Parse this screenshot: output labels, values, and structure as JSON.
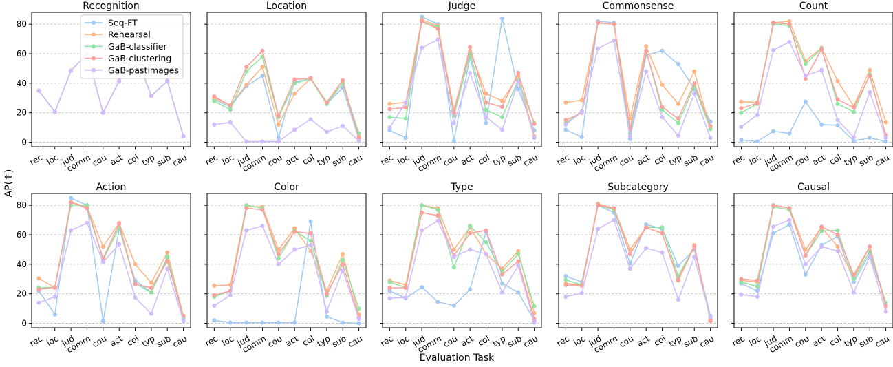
{
  "figure": {
    "ylabel": "AP(↑)",
    "xlabel": "Evaluation Task"
  },
  "legend": {
    "placement": "upper-right of first panel",
    "entries": [
      "Seq-FT",
      "Rehearsal",
      "GaB-classifier",
      "GaB-clustering",
      "GaB-pastimages"
    ]
  },
  "colors": {
    "Seq-FT": "#a1c9f4",
    "Rehearsal": "#ffb482",
    "GaB-classifier": "#8de5a1",
    "GaB-clustering": "#ff9f9b",
    "GaB-pastimages": "#d0bbff"
  },
  "chart_data": [
    {
      "type": "line",
      "title": "Recognition",
      "categories": [
        "rec",
        "loc",
        "jud",
        "comm",
        "cou",
        "act",
        "col",
        "typ",
        "sub",
        "cau"
      ],
      "ylim": [
        -3,
        88
      ],
      "yticks": [
        0,
        20,
        40,
        60,
        80
      ],
      "grid": "horizontal dashed",
      "series": [
        {
          "name": "Seq-FT",
          "values": [
            35,
            20.5,
            48.5,
            60,
            20,
            41.5,
            60,
            31.5,
            41.5,
            4
          ]
        },
        {
          "name": "Rehearsal",
          "values": [
            35,
            20.5,
            48.5,
            60,
            20,
            41.5,
            60,
            31.5,
            41.5,
            4
          ]
        },
        {
          "name": "GaB-classifier",
          "values": [
            35,
            20.5,
            48.5,
            60,
            20,
            41.5,
            60,
            31.5,
            41.5,
            4
          ]
        },
        {
          "name": "GaB-clustering",
          "values": [
            35,
            20.5,
            48.5,
            60,
            20,
            41.5,
            60,
            31.5,
            41.5,
            4
          ]
        },
        {
          "name": "GaB-pastimages",
          "values": [
            35,
            20.5,
            48.5,
            60,
            20,
            41.5,
            60,
            31.5,
            41.5,
            4
          ]
        }
      ]
    },
    {
      "type": "line",
      "title": "Location",
      "categories": [
        "rec",
        "loc",
        "jud",
        "comm",
        "cou",
        "act",
        "col",
        "typ",
        "sub",
        "cau"
      ],
      "ylim": [
        -3,
        88
      ],
      "yticks": [
        0,
        20,
        40,
        60,
        80
      ],
      "grid": "horizontal dashed",
      "series": [
        {
          "name": "Seq-FT",
          "values": [
            29,
            24,
            38,
            45,
            3,
            41,
            43,
            26,
            37,
            2
          ]
        },
        {
          "name": "Rehearsal",
          "values": [
            30,
            25,
            39,
            51,
            12,
            33,
            43,
            27,
            40,
            4
          ]
        },
        {
          "name": "GaB-classifier",
          "values": [
            28,
            22,
            48,
            58,
            17,
            40,
            43,
            26,
            40,
            6
          ]
        },
        {
          "name": "GaB-clustering",
          "values": [
            31,
            25,
            51,
            62,
            18,
            42.5,
            43.5,
            27,
            42,
            3
          ]
        },
        {
          "name": "GaB-pastimages",
          "values": [
            12,
            13.5,
            0.5,
            0.5,
            0.5,
            8.5,
            15.5,
            7,
            11,
            1
          ]
        }
      ]
    },
    {
      "type": "line",
      "title": "Judge",
      "categories": [
        "rec",
        "loc",
        "jud",
        "comm",
        "cou",
        "act",
        "col",
        "typ",
        "sub",
        "cau"
      ],
      "ylim": [
        -3,
        88
      ],
      "yticks": [
        0,
        20,
        40,
        60,
        80
      ],
      "grid": "horizontal dashed",
      "series": [
        {
          "name": "Seq-FT",
          "values": [
            8,
            3,
            85,
            80,
            1,
            58,
            13,
            84,
            36,
            8
          ]
        },
        {
          "name": "Rehearsal",
          "values": [
            26,
            27,
            83,
            79,
            22,
            62,
            33,
            28,
            45,
            4
          ]
        },
        {
          "name": "GaB-classifier",
          "values": [
            17,
            16,
            82,
            78,
            18,
            60,
            22,
            17,
            42,
            13
          ]
        },
        {
          "name": "GaB-clustering",
          "values": [
            22.5,
            23.5,
            82,
            77,
            20,
            64.5,
            27,
            24,
            47,
            12.5
          ]
        },
        {
          "name": "GaB-pastimages",
          "values": [
            10,
            27,
            64,
            69.5,
            13,
            47,
            17,
            8.5,
            41,
            3
          ]
        }
      ]
    },
    {
      "type": "line",
      "title": "Commonsense",
      "categories": [
        "rec",
        "loc",
        "jud",
        "comm",
        "cou",
        "act",
        "col",
        "typ",
        "sub",
        "cau"
      ],
      "ylim": [
        -3,
        88
      ],
      "yticks": [
        0,
        20,
        40,
        60,
        80
      ],
      "grid": "horizontal dashed",
      "series": [
        {
          "name": "Seq-FT",
          "values": [
            8.5,
            3.5,
            82,
            81,
            2,
            59,
            62,
            53,
            36,
            14
          ]
        },
        {
          "name": "Rehearsal",
          "values": [
            27,
            28.5,
            81,
            80,
            16,
            65,
            39,
            26,
            48,
            9
          ]
        },
        {
          "name": "GaB-classifier",
          "values": [
            13,
            21,
            81,
            80,
            6,
            62,
            22,
            13,
            38,
            9
          ]
        },
        {
          "name": "GaB-clustering",
          "values": [
            15,
            20,
            81,
            80,
            9,
            62,
            24,
            16,
            40,
            11
          ]
        },
        {
          "name": "GaB-pastimages",
          "values": [
            12,
            20.5,
            63.5,
            69,
            4,
            48,
            17,
            4.5,
            33,
            3
          ]
        }
      ]
    },
    {
      "type": "line",
      "title": "Count",
      "categories": [
        "rec",
        "loc",
        "jud",
        "comm",
        "cou",
        "act",
        "col",
        "typ",
        "sub",
        "cau"
      ],
      "ylim": [
        -3,
        88
      ],
      "yticks": [
        0,
        20,
        40,
        60,
        80
      ],
      "grid": "horizontal dashed",
      "series": [
        {
          "name": "Seq-FT",
          "values": [
            1.5,
            0.5,
            7.5,
            6,
            27.5,
            12,
            11.5,
            1,
            3,
            0.5
          ]
        },
        {
          "name": "Rehearsal",
          "values": [
            27.5,
            27,
            81,
            82,
            55,
            64,
            41.5,
            24.5,
            49,
            13.5
          ]
        },
        {
          "name": "GaB-classifier",
          "values": [
            20,
            26,
            80,
            79,
            53,
            63.5,
            26,
            20.5,
            46,
            4
          ]
        },
        {
          "name": "GaB-clustering",
          "values": [
            23,
            26.5,
            81,
            80,
            43,
            63,
            29,
            23.5,
            45,
            5
          ]
        },
        {
          "name": "GaB-pastimages",
          "values": [
            10.5,
            18.5,
            62.5,
            68,
            45,
            49,
            15,
            3.5,
            34,
            3
          ]
        }
      ]
    },
    {
      "type": "line",
      "title": "Action",
      "categories": [
        "rec",
        "loc",
        "jud",
        "comm",
        "cou",
        "act",
        "col",
        "typ",
        "sub",
        "cau"
      ],
      "ylim": [
        -3,
        88
      ],
      "yticks": [
        0,
        20,
        40,
        60,
        80
      ],
      "grid": "horizontal dashed",
      "series": [
        {
          "name": "Seq-FT",
          "values": [
            22,
            6,
            85,
            80,
            1.5,
            64,
            29,
            21,
            44,
            3
          ]
        },
        {
          "name": "Rehearsal",
          "values": [
            30.5,
            24,
            82,
            79,
            52,
            68,
            40,
            27.5,
            48,
            5
          ]
        },
        {
          "name": "GaB-classifier",
          "values": [
            24,
            24.5,
            80,
            80,
            43,
            65,
            27,
            21,
            45,
            4
          ]
        },
        {
          "name": "GaB-clustering",
          "values": [
            23,
            24.5,
            82,
            78,
            44,
            67.5,
            26.5,
            24,
            42,
            5
          ]
        },
        {
          "name": "GaB-pastimages",
          "values": [
            14,
            18,
            63,
            68,
            41.5,
            53.5,
            17.5,
            6.5,
            37,
            1.5
          ]
        }
      ]
    },
    {
      "type": "line",
      "title": "Color",
      "categories": [
        "rec",
        "loc",
        "jud",
        "comm",
        "cou",
        "act",
        "col",
        "typ",
        "sub",
        "cau"
      ],
      "ylim": [
        -3,
        88
      ],
      "yticks": [
        0,
        20,
        40,
        60,
        80
      ],
      "grid": "horizontal dashed",
      "series": [
        {
          "name": "Seq-FT",
          "values": [
            2,
            0.5,
            0.5,
            0.5,
            0.5,
            0.5,
            69,
            4.5,
            0.5,
            0
          ]
        },
        {
          "name": "Rehearsal",
          "values": [
            25.5,
            26,
            79,
            79,
            50,
            64.5,
            49,
            22,
            47,
            6
          ]
        },
        {
          "name": "GaB-classifier",
          "values": [
            18,
            22,
            80,
            78,
            44,
            62.5,
            56,
            18.5,
            43,
            10
          ]
        },
        {
          "name": "GaB-clustering",
          "values": [
            19,
            22,
            78,
            77,
            47,
            62,
            61,
            20,
            40,
            4
          ]
        },
        {
          "name": "GaB-pastimages",
          "values": [
            12,
            19,
            63,
            66,
            40,
            50,
            53,
            8,
            36,
            3
          ]
        }
      ]
    },
    {
      "type": "line",
      "title": "Type",
      "categories": [
        "rec",
        "loc",
        "jud",
        "comm",
        "cou",
        "act",
        "col",
        "typ",
        "sub",
        "cau"
      ],
      "ylim": [
        -3,
        88
      ],
      "yticks": [
        0,
        20,
        40,
        60,
        80
      ],
      "grid": "horizontal dashed",
      "series": [
        {
          "name": "Seq-FT",
          "values": [
            22,
            17,
            24.5,
            14.5,
            12,
            23,
            62,
            27,
            21,
            2
          ]
        },
        {
          "name": "Rehearsal",
          "values": [
            29,
            26,
            80,
            78,
            50,
            65,
            47,
            37,
            49,
            7
          ]
        },
        {
          "name": "GaB-classifier",
          "values": [
            28,
            24,
            80,
            77,
            38,
            66,
            55,
            35,
            47,
            11.5
          ]
        },
        {
          "name": "GaB-clustering",
          "values": [
            24,
            24,
            75,
            73,
            46,
            61,
            63,
            33,
            42,
            3
          ]
        },
        {
          "name": "GaB-pastimages",
          "values": [
            17,
            17.5,
            63,
            69.5,
            45,
            50,
            47,
            21,
            39,
            0.5
          ]
        }
      ]
    },
    {
      "type": "line",
      "title": "Subcategory",
      "categories": [
        "rec",
        "loc",
        "jud",
        "comm",
        "cou",
        "act",
        "col",
        "typ",
        "sub",
        "cau"
      ],
      "ylim": [
        -3,
        88
      ],
      "yticks": [
        0,
        20,
        40,
        60,
        80
      ],
      "grid": "horizontal dashed",
      "series": [
        {
          "name": "Seq-FT",
          "values": [
            32,
            28,
            80,
            75,
            40.5,
            67,
            64,
            39,
            50,
            5
          ]
        },
        {
          "name": "Rehearsal",
          "values": [
            27,
            26,
            81,
            78,
            50,
            65,
            61,
            30,
            53,
            1.5
          ]
        },
        {
          "name": "GaB-classifier",
          "values": [
            29.5,
            26,
            80,
            77,
            47,
            65,
            65,
            32,
            52,
            3
          ]
        },
        {
          "name": "GaB-clustering",
          "values": [
            26,
            25.5,
            80,
            78,
            47,
            65,
            61,
            29,
            52,
            2
          ]
        },
        {
          "name": "GaB-pastimages",
          "values": [
            18,
            20.5,
            64,
            70,
            37,
            51,
            48,
            16,
            45,
            4
          ]
        }
      ]
    },
    {
      "type": "line",
      "title": "Causal",
      "categories": [
        "rec",
        "loc",
        "jud",
        "comm",
        "cou",
        "act",
        "col",
        "typ",
        "sub",
        "cau"
      ],
      "ylim": [
        -3,
        88
      ],
      "yticks": [
        0,
        20,
        40,
        60,
        80
      ],
      "grid": "horizontal dashed",
      "series": [
        {
          "name": "Seq-FT",
          "values": [
            27,
            22,
            61,
            67,
            33,
            53,
            59,
            28,
            47,
            13
          ]
        },
        {
          "name": "Rehearsal",
          "values": [
            29,
            28,
            80,
            78,
            50,
            65,
            52,
            31,
            52,
            11
          ]
        },
        {
          "name": "GaB-classifier",
          "values": [
            28,
            25,
            79,
            77,
            46,
            62.5,
            63,
            30,
            49,
            14
          ]
        },
        {
          "name": "GaB-clustering",
          "values": [
            30,
            29,
            80,
            78,
            46,
            65.5,
            60,
            33,
            52,
            12
          ]
        },
        {
          "name": "GaB-pastimages",
          "values": [
            19.5,
            18,
            65.5,
            70,
            40,
            52,
            49,
            21,
            45,
            8
          ]
        }
      ]
    }
  ]
}
